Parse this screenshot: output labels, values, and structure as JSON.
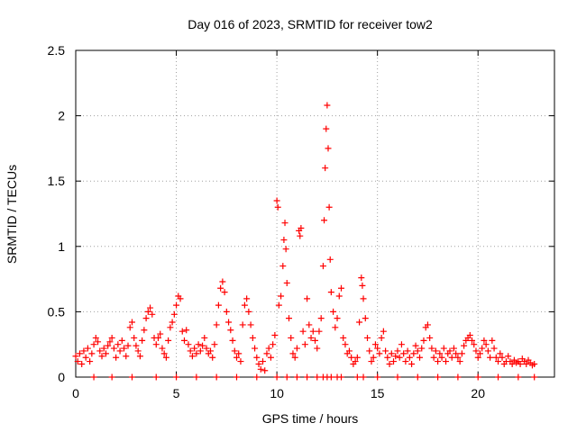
{
  "chart_data": {
    "type": "scatter",
    "title": "Day 016 of 2023, SRMTID for receiver tow2",
    "xlabel": "GPS time / hours",
    "ylabel": "SRMTID / TECUs",
    "xlim": [
      0,
      23.8
    ],
    "ylim": [
      0,
      2.5
    ],
    "xticks": [
      0,
      5,
      10,
      15,
      20
    ],
    "xtick_labels": [
      "0",
      "5",
      "10",
      "15",
      "20"
    ],
    "yticks": [
      0,
      0.5,
      1,
      1.5,
      2,
      2.5
    ],
    "ytick_labels": [
      "0",
      "0.5",
      "1",
      "1.5",
      "2",
      "2.5"
    ],
    "grid": true,
    "marker": "+",
    "marker_color": "#ff0000",
    "series": [
      {
        "name": "SRMTID",
        "points": [
          [
            0.0,
            0.16
          ],
          [
            0.1,
            0.12
          ],
          [
            0.2,
            0.18
          ],
          [
            0.3,
            0.1
          ],
          [
            0.4,
            0.2
          ],
          [
            0.5,
            0.15
          ],
          [
            0.6,
            0.22
          ],
          [
            0.7,
            0.12
          ],
          [
            0.8,
            0.18
          ],
          [
            0.9,
            0.25
          ],
          [
            1.0,
            0.3
          ],
          [
            1.1,
            0.27
          ],
          [
            1.2,
            0.2
          ],
          [
            1.3,
            0.16
          ],
          [
            1.4,
            0.22
          ],
          [
            1.5,
            0.18
          ],
          [
            1.6,
            0.24
          ],
          [
            1.7,
            0.27
          ],
          [
            1.8,
            0.3
          ],
          [
            1.9,
            0.22
          ],
          [
            2.0,
            0.15
          ],
          [
            2.1,
            0.25
          ],
          [
            2.2,
            0.2
          ],
          [
            2.3,
            0.28
          ],
          [
            2.4,
            0.22
          ],
          [
            2.5,
            0.16
          ],
          [
            2.6,
            0.24
          ],
          [
            2.7,
            0.38
          ],
          [
            2.8,
            0.42
          ],
          [
            2.9,
            0.3
          ],
          [
            3.0,
            0.24
          ],
          [
            3.1,
            0.2
          ],
          [
            3.2,
            0.16
          ],
          [
            3.3,
            0.28
          ],
          [
            3.4,
            0.36
          ],
          [
            3.5,
            0.45
          ],
          [
            3.6,
            0.5
          ],
          [
            3.7,
            0.53
          ],
          [
            3.8,
            0.48
          ],
          [
            3.9,
            0.3
          ],
          [
            4.0,
            0.25
          ],
          [
            4.1,
            0.3
          ],
          [
            4.2,
            0.33
          ],
          [
            4.3,
            0.22
          ],
          [
            4.4,
            0.18
          ],
          [
            4.5,
            0.15
          ],
          [
            4.6,
            0.28
          ],
          [
            4.7,
            0.38
          ],
          [
            4.8,
            0.42
          ],
          [
            4.9,
            0.48
          ],
          [
            5.0,
            0.55
          ],
          [
            5.1,
            0.62
          ],
          [
            5.2,
            0.6
          ],
          [
            5.3,
            0.35
          ],
          [
            5.4,
            0.28
          ],
          [
            5.5,
            0.36
          ],
          [
            5.6,
            0.25
          ],
          [
            5.7,
            0.2
          ],
          [
            5.8,
            0.16
          ],
          [
            5.9,
            0.22
          ],
          [
            6.0,
            0.18
          ],
          [
            6.1,
            0.25
          ],
          [
            6.2,
            0.2
          ],
          [
            6.3,
            0.24
          ],
          [
            6.4,
            0.3
          ],
          [
            6.5,
            0.22
          ],
          [
            6.6,
            0.18
          ],
          [
            6.7,
            0.2
          ],
          [
            6.8,
            0.15
          ],
          [
            6.9,
            0.25
          ],
          [
            7.0,
            0.4
          ],
          [
            7.1,
            0.55
          ],
          [
            7.2,
            0.68
          ],
          [
            7.3,
            0.73
          ],
          [
            7.4,
            0.65
          ],
          [
            7.5,
            0.5
          ],
          [
            7.6,
            0.42
          ],
          [
            7.7,
            0.36
          ],
          [
            7.8,
            0.28
          ],
          [
            7.9,
            0.2
          ],
          [
            8.0,
            0.15
          ],
          [
            8.1,
            0.18
          ],
          [
            8.2,
            0.12
          ],
          [
            8.3,
            0.4
          ],
          [
            8.4,
            0.55
          ],
          [
            8.5,
            0.6
          ],
          [
            8.6,
            0.5
          ],
          [
            8.7,
            0.4
          ],
          [
            8.8,
            0.3
          ],
          [
            8.9,
            0.22
          ],
          [
            9.0,
            0.15
          ],
          [
            9.1,
            0.1
          ],
          [
            9.2,
            0.06
          ],
          [
            9.3,
            0.12
          ],
          [
            9.4,
            0.05
          ],
          [
            9.5,
            0.18
          ],
          [
            9.6,
            0.22
          ],
          [
            9.7,
            0.15
          ],
          [
            9.8,
            0.25
          ],
          [
            9.9,
            0.32
          ],
          [
            10.0,
            1.35
          ],
          [
            10.05,
            1.3
          ],
          [
            10.1,
            0.55
          ],
          [
            10.2,
            0.62
          ],
          [
            10.3,
            0.85
          ],
          [
            10.35,
            1.05
          ],
          [
            10.4,
            1.18
          ],
          [
            10.45,
            0.98
          ],
          [
            10.5,
            0.72
          ],
          [
            10.6,
            0.45
          ],
          [
            10.7,
            0.3
          ],
          [
            10.8,
            0.18
          ],
          [
            10.9,
            0.15
          ],
          [
            11.0,
            0.22
          ],
          [
            11.1,
            1.12
          ],
          [
            11.15,
            1.08
          ],
          [
            11.2,
            1.14
          ],
          [
            11.3,
            0.35
          ],
          [
            11.4,
            0.25
          ],
          [
            11.5,
            0.6
          ],
          [
            11.6,
            0.4
          ],
          [
            11.7,
            0.3
          ],
          [
            11.8,
            0.35
          ],
          [
            11.9,
            0.28
          ],
          [
            12.0,
            0.22
          ],
          [
            12.1,
            0.35
          ],
          [
            12.2,
            0.45
          ],
          [
            12.3,
            0.85
          ],
          [
            12.35,
            1.2
          ],
          [
            12.4,
            1.6
          ],
          [
            12.45,
            1.9
          ],
          [
            12.5,
            2.08
          ],
          [
            12.55,
            1.75
          ],
          [
            12.6,
            1.3
          ],
          [
            12.65,
            0.9
          ],
          [
            12.7,
            0.65
          ],
          [
            12.8,
            0.5
          ],
          [
            12.9,
            0.38
          ],
          [
            13.0,
            0.45
          ],
          [
            13.1,
            0.62
          ],
          [
            13.2,
            0.68
          ],
          [
            13.3,
            0.3
          ],
          [
            13.4,
            0.25
          ],
          [
            13.5,
            0.18
          ],
          [
            13.6,
            0.2
          ],
          [
            13.7,
            0.15
          ],
          [
            13.8,
            0.1
          ],
          [
            13.9,
            0.12
          ],
          [
            14.0,
            0.15
          ],
          [
            14.1,
            0.42
          ],
          [
            14.2,
            0.76
          ],
          [
            14.25,
            0.7
          ],
          [
            14.3,
            0.6
          ],
          [
            14.4,
            0.45
          ],
          [
            14.5,
            0.3
          ],
          [
            14.6,
            0.2
          ],
          [
            14.7,
            0.12
          ],
          [
            14.8,
            0.15
          ],
          [
            14.9,
            0.25
          ],
          [
            15.0,
            0.22
          ],
          [
            15.1,
            0.18
          ],
          [
            15.2,
            0.3
          ],
          [
            15.3,
            0.35
          ],
          [
            15.4,
            0.2
          ],
          [
            15.5,
            0.15
          ],
          [
            15.6,
            0.1
          ],
          [
            15.7,
            0.18
          ],
          [
            15.8,
            0.12
          ],
          [
            15.9,
            0.16
          ],
          [
            16.0,
            0.2
          ],
          [
            16.1,
            0.15
          ],
          [
            16.2,
            0.25
          ],
          [
            16.3,
            0.18
          ],
          [
            16.4,
            0.12
          ],
          [
            16.5,
            0.2
          ],
          [
            16.6,
            0.15
          ],
          [
            16.7,
            0.1
          ],
          [
            16.8,
            0.18
          ],
          [
            16.9,
            0.24
          ],
          [
            17.0,
            0.2
          ],
          [
            17.1,
            0.15
          ],
          [
            17.2,
            0.22
          ],
          [
            17.3,
            0.28
          ],
          [
            17.4,
            0.38
          ],
          [
            17.5,
            0.4
          ],
          [
            17.6,
            0.3
          ],
          [
            17.7,
            0.22
          ],
          [
            17.8,
            0.15
          ],
          [
            17.9,
            0.2
          ],
          [
            18.0,
            0.12
          ],
          [
            18.1,
            0.18
          ],
          [
            18.2,
            0.15
          ],
          [
            18.3,
            0.22
          ],
          [
            18.4,
            0.12
          ],
          [
            18.5,
            0.18
          ],
          [
            18.6,
            0.2
          ],
          [
            18.7,
            0.15
          ],
          [
            18.8,
            0.22
          ],
          [
            18.9,
            0.18
          ],
          [
            19.0,
            0.15
          ],
          [
            19.1,
            0.12
          ],
          [
            19.2,
            0.18
          ],
          [
            19.3,
            0.24
          ],
          [
            19.4,
            0.28
          ],
          [
            19.5,
            0.3
          ],
          [
            19.6,
            0.32
          ],
          [
            19.7,
            0.28
          ],
          [
            19.8,
            0.25
          ],
          [
            19.9,
            0.2
          ],
          [
            20.0,
            0.15
          ],
          [
            20.1,
            0.18
          ],
          [
            20.2,
            0.22
          ],
          [
            20.3,
            0.28
          ],
          [
            20.4,
            0.25
          ],
          [
            20.5,
            0.2
          ],
          [
            20.6,
            0.15
          ],
          [
            20.7,
            0.28
          ],
          [
            20.8,
            0.22
          ],
          [
            20.9,
            0.15
          ],
          [
            21.0,
            0.12
          ],
          [
            21.1,
            0.18
          ],
          [
            21.2,
            0.15
          ],
          [
            21.3,
            0.1
          ],
          [
            21.4,
            0.12
          ],
          [
            21.5,
            0.16
          ],
          [
            21.6,
            0.12
          ],
          [
            21.7,
            0.1
          ],
          [
            21.8,
            0.13
          ],
          [
            21.9,
            0.11
          ],
          [
            22.0,
            0.12
          ],
          [
            22.1,
            0.1
          ],
          [
            22.2,
            0.14
          ],
          [
            22.3,
            0.12
          ],
          [
            22.4,
            0.1
          ],
          [
            22.5,
            0.13
          ],
          [
            22.6,
            0.11
          ],
          [
            22.7,
            0.09
          ],
          [
            22.8,
            0.1
          ],
          [
            0.9,
            0.0
          ],
          [
            1.8,
            0.0
          ],
          [
            2.8,
            0.0
          ],
          [
            4.0,
            0.0
          ],
          [
            5.0,
            0.0
          ],
          [
            6.0,
            0.0
          ],
          [
            7.0,
            0.0
          ],
          [
            8.0,
            0.0
          ],
          [
            9.0,
            0.0
          ],
          [
            10.0,
            0.0
          ],
          [
            10.5,
            0.0
          ],
          [
            11.0,
            0.0
          ],
          [
            11.5,
            0.0
          ],
          [
            12.0,
            0.0
          ],
          [
            12.3,
            0.0
          ],
          [
            12.5,
            0.0
          ],
          [
            12.7,
            0.0
          ],
          [
            13.0,
            0.0
          ],
          [
            13.2,
            0.0
          ],
          [
            14.0,
            0.0
          ],
          [
            14.3,
            0.0
          ],
          [
            15.0,
            0.0
          ],
          [
            16.0,
            0.0
          ],
          [
            17.0,
            0.0
          ],
          [
            18.0,
            0.0
          ],
          [
            19.0,
            0.0
          ],
          [
            20.0,
            0.0
          ],
          [
            21.0,
            0.0
          ],
          [
            22.0,
            0.0
          ],
          [
            22.8,
            0.0
          ]
        ]
      }
    ]
  }
}
